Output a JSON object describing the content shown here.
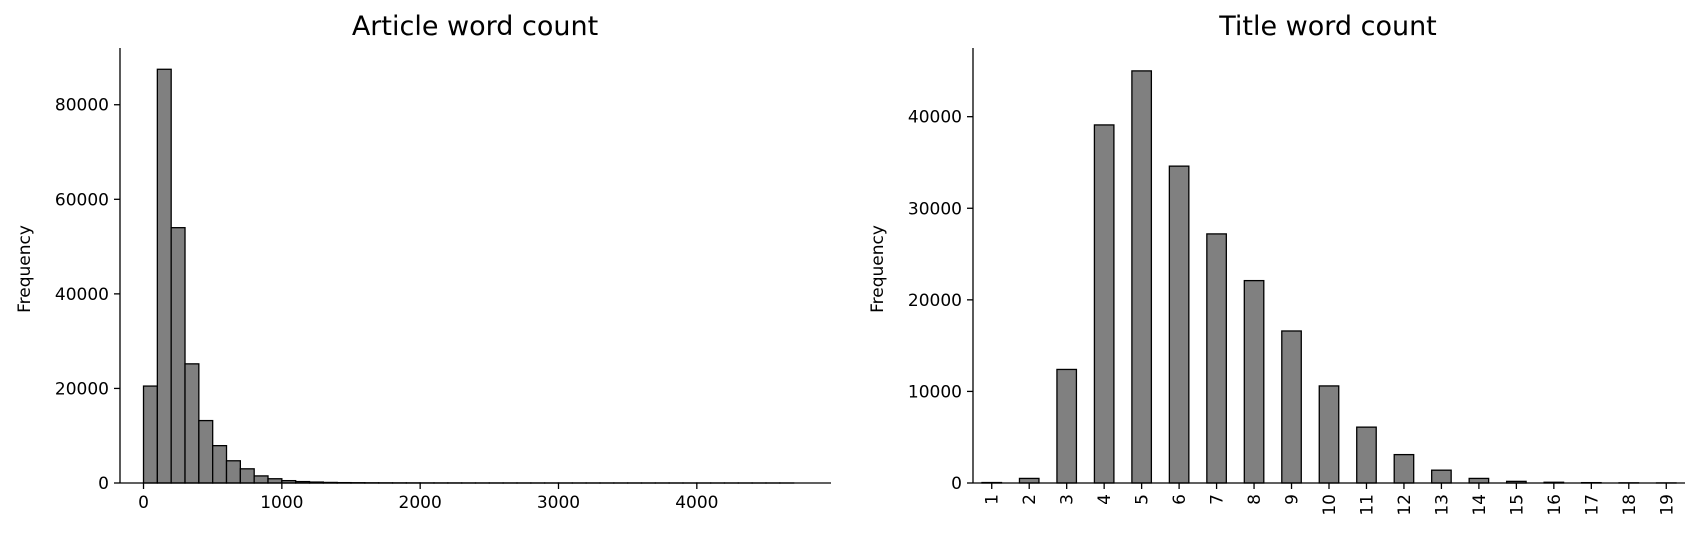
{
  "chart_data": [
    {
      "type": "bar",
      "title": "Article word count",
      "xlabel": "",
      "ylabel": "Frequency",
      "xlim": [
        -170,
        4970
      ],
      "ylim": [
        0,
        92000
      ],
      "xticks": [
        0,
        1000,
        2000,
        3000,
        4000
      ],
      "yticks": [
        0,
        20000,
        40000,
        60000,
        80000
      ],
      "bin_width": 100,
      "bin_starts": [
        0,
        100,
        200,
        300,
        400,
        500,
        600,
        700,
        800,
        900,
        1000,
        1100,
        1200,
        1300,
        1400,
        1500,
        1600,
        1700,
        1800,
        1900,
        2000,
        2100,
        2200,
        2300,
        2400,
        2500,
        2600,
        2700,
        2800,
        2900,
        3000,
        3100,
        3200,
        3300,
        3400,
        3500,
        3600,
        3700,
        3800,
        3900,
        4000,
        4100,
        4200,
        4300,
        4400,
        4500,
        4600
      ],
      "values": [
        20500,
        87500,
        54000,
        25200,
        13200,
        7900,
        4700,
        3000,
        1500,
        900,
        500,
        300,
        200,
        120,
        80,
        60,
        40,
        30,
        25,
        20,
        15,
        12,
        10,
        8,
        6,
        5,
        5,
        4,
        4,
        3,
        3,
        3,
        2,
        2,
        2,
        2,
        2,
        2,
        1,
        1,
        1,
        1,
        1,
        1,
        1,
        1,
        1
      ],
      "grid": false,
      "bar_color": "#808080",
      "edge_color": "#000000"
    },
    {
      "type": "bar",
      "title": "Title word count",
      "xlabel": "",
      "ylabel": "Frequency",
      "ylim": [
        0,
        47500
      ],
      "yticks": [
        0,
        10000,
        20000,
        30000,
        40000
      ],
      "categories": [
        "1",
        "2",
        "3",
        "4",
        "5",
        "6",
        "7",
        "8",
        "9",
        "10",
        "11",
        "12",
        "13",
        "14",
        "15",
        "16",
        "17",
        "18",
        "19"
      ],
      "values": [
        50,
        500,
        12400,
        39100,
        45000,
        34600,
        27200,
        22100,
        16600,
        10600,
        6100,
        3100,
        1400,
        500,
        180,
        80,
        40,
        20,
        10
      ],
      "grid": false,
      "bar_color": "#808080",
      "edge_color": "#000000"
    }
  ]
}
